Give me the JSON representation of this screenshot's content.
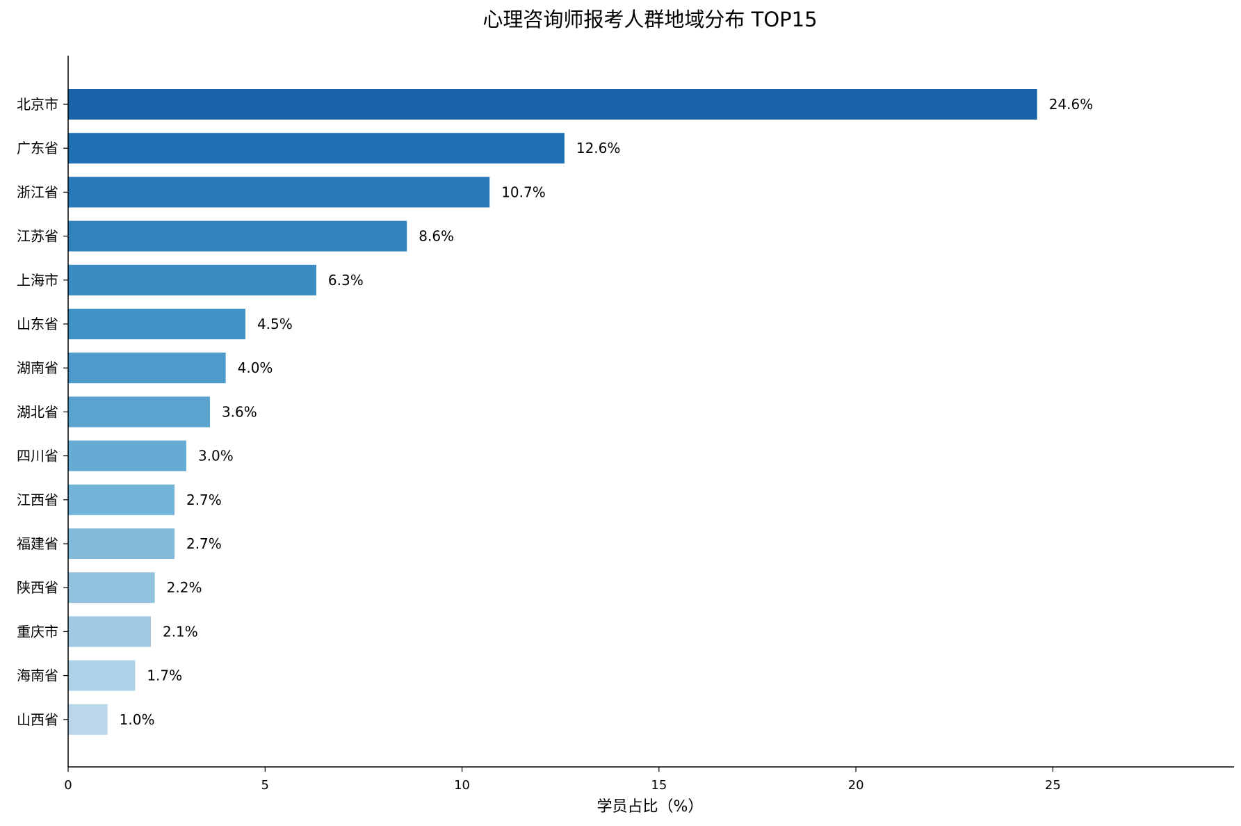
{
  "chart_data": {
    "type": "bar",
    "orientation": "horizontal",
    "title": "心理咨询师报考人群地域分布 TOP15",
    "xlabel": "学员占比（%）",
    "ylabel": "",
    "xlim": [
      0,
      29.6
    ],
    "xticks": [
      "0",
      "5",
      "10",
      "15",
      "20",
      "25"
    ],
    "grid": false,
    "legend": "none",
    "categories": [
      "北京市",
      "广东省",
      "浙江省",
      "江苏省",
      "上海市",
      "山东省",
      "湖南省",
      "湖北省",
      "四川省",
      "江西省",
      "福建省",
      "陕西省",
      "重庆市",
      "海南省",
      "山西省"
    ],
    "values": [
      24.6,
      12.6,
      10.7,
      8.6,
      6.3,
      4.5,
      4.0,
      3.6,
      3.0,
      2.7,
      2.7,
      2.2,
      2.1,
      1.7,
      1.0
    ],
    "value_labels": [
      "24.6%",
      "12.6%",
      "10.7%",
      "8.6%",
      "6.3%",
      "4.5%",
      "4.0%",
      "3.6%",
      "3.0%",
      "2.7%",
      "2.7%",
      "2.2%",
      "2.1%",
      "1.7%",
      "1.0%"
    ],
    "colors": [
      "#1a63a8",
      "#2070b4",
      "#2979b9",
      "#3182bd",
      "#3a8cc3",
      "#4292c6",
      "#4e9acb",
      "#5aa3cf",
      "#66abd4",
      "#72b3d8",
      "#82badb",
      "#92c3de",
      "#a0cae2",
      "#aed1e7",
      "#bad6eb"
    ]
  }
}
